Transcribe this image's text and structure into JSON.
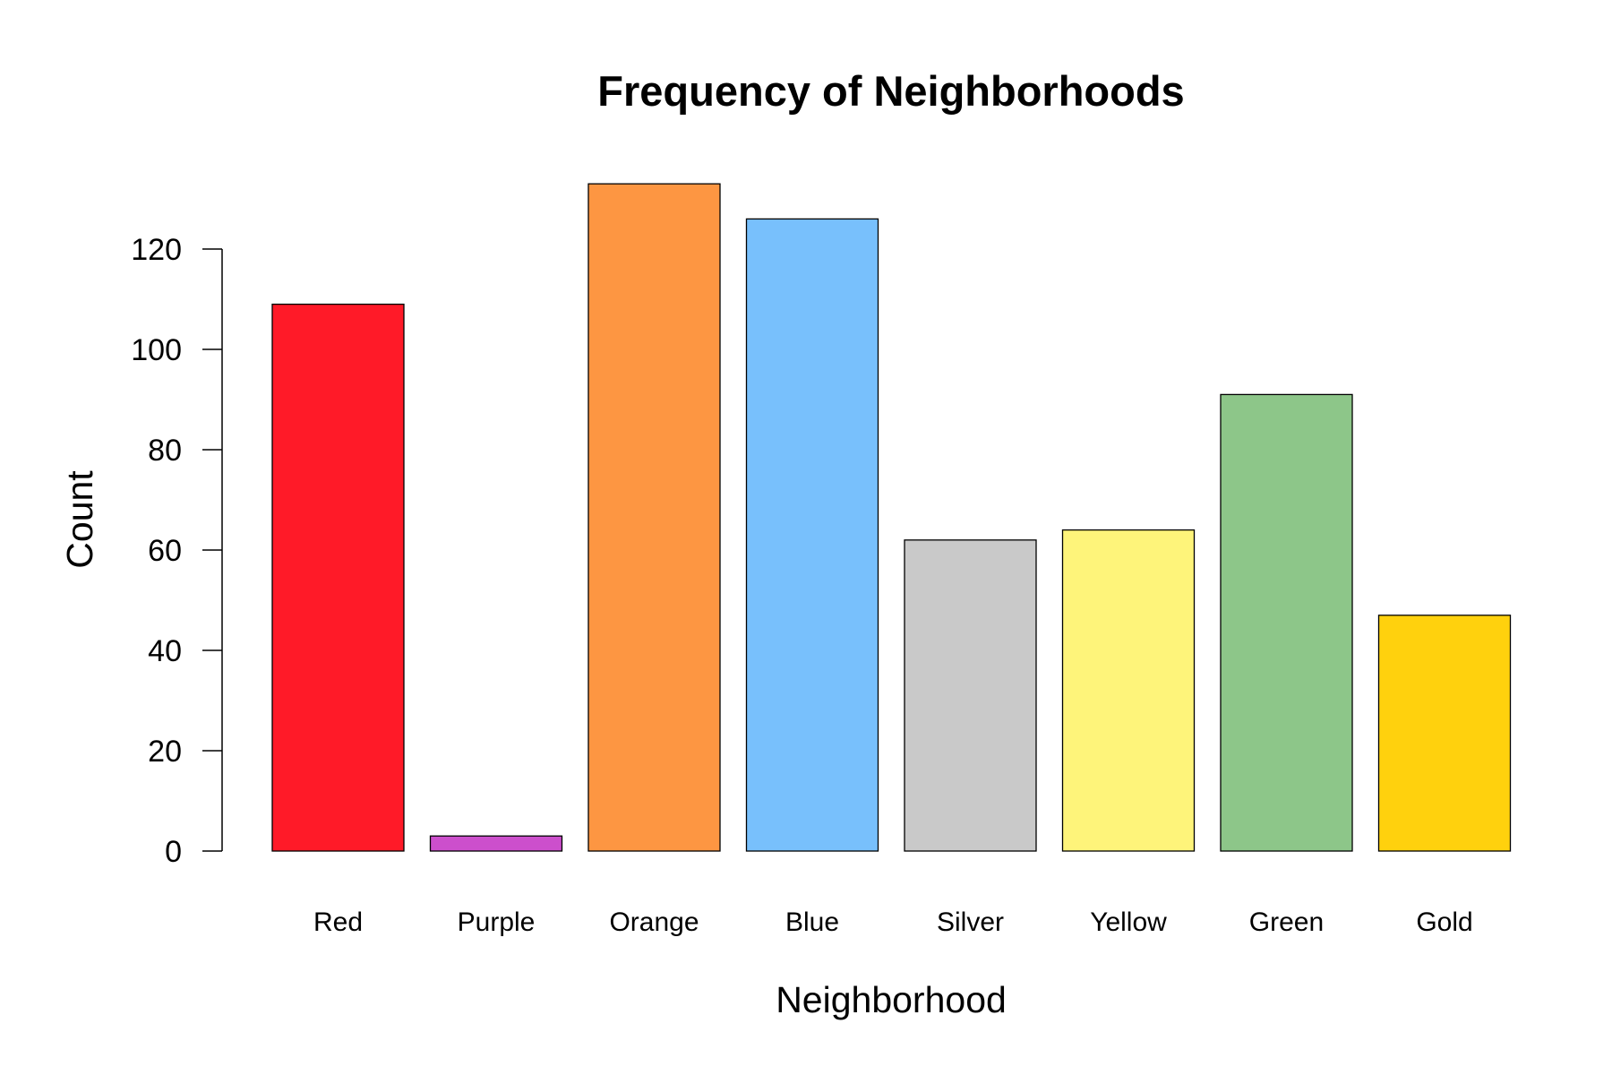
{
  "chart_data": {
    "type": "bar",
    "title": "Frequency of Neighborhoods",
    "xlabel": "Neighborhood",
    "ylabel": "Count",
    "categories": [
      "Red",
      "Purple",
      "Orange",
      "Blue",
      "Silver",
      "Yellow",
      "Green",
      "Gold"
    ],
    "values": [
      109,
      3,
      133,
      126,
      62,
      64,
      91,
      47
    ],
    "colors": [
      "#FF1A28",
      "#CC4FCC",
      "#FD9642",
      "#78C0FC",
      "#C9C9C9",
      "#FEF47A",
      "#8DC689",
      "#FFD10D"
    ],
    "yticks": [
      0,
      20,
      40,
      60,
      80,
      100,
      120
    ],
    "ylim": [
      0,
      133
    ],
    "grid": false,
    "legend": "none"
  }
}
